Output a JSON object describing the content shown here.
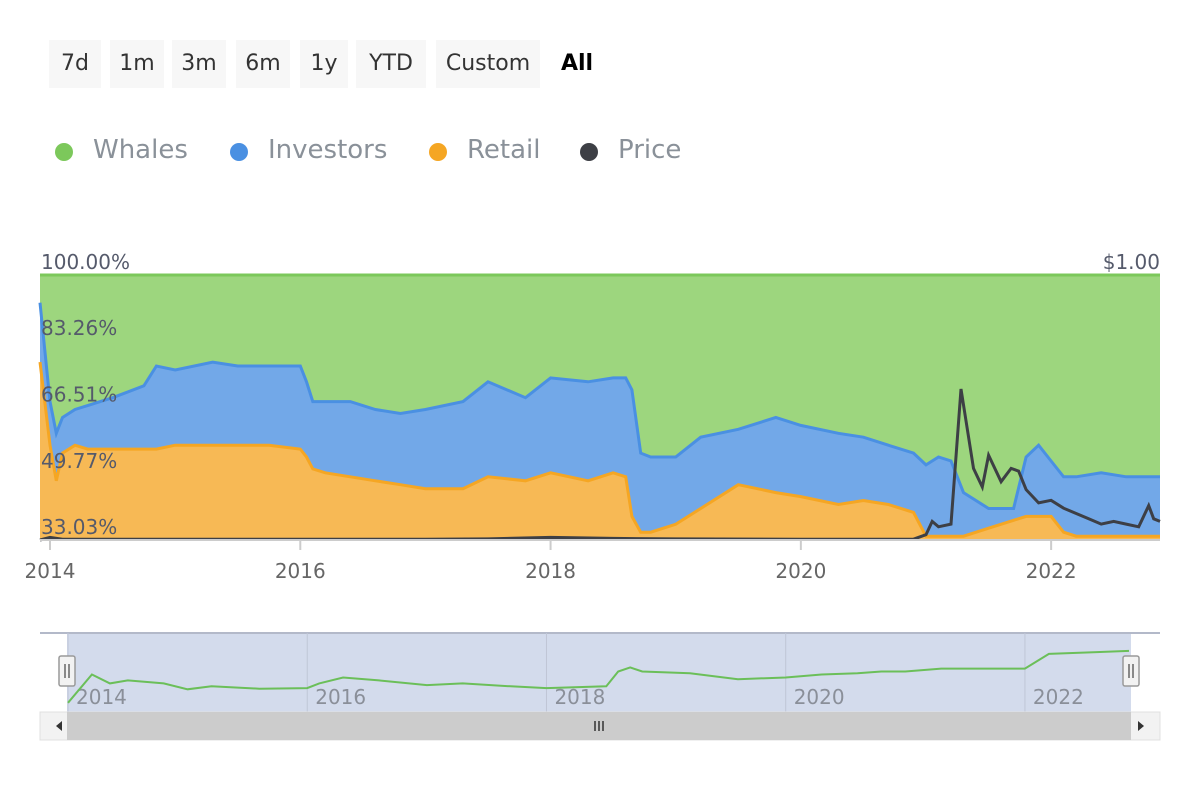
{
  "range_selector": {
    "buttons": [
      {
        "label": "7d",
        "key": "7d"
      },
      {
        "label": "1m",
        "key": "1m"
      },
      {
        "label": "3m",
        "key": "3m"
      },
      {
        "label": "6m",
        "key": "6m"
      },
      {
        "label": "1y",
        "key": "1y"
      },
      {
        "label": "YTD",
        "key": "ytd"
      },
      {
        "label": "Custom",
        "key": "custom"
      },
      {
        "label": "All",
        "key": "all"
      }
    ],
    "active": "All"
  },
  "legend": [
    {
      "label": "Whales",
      "color": "#7cc85b"
    },
    {
      "label": "Investors",
      "color": "#4a90e2"
    },
    {
      "label": "Retail",
      "color": "#f5a623"
    },
    {
      "label": "Price",
      "color": "#3d3f45"
    }
  ],
  "chart_data": {
    "type": "area",
    "stacking": "percent",
    "x_ticks": [
      "2014",
      "2016",
      "2018",
      "2020",
      "2022"
    ],
    "xlim": [
      2013.92,
      2022.87
    ],
    "y_left_ticks": [
      "33.03%",
      "49.77%",
      "66.51%",
      "83.26%",
      "100.00%"
    ],
    "ylim_left": [
      33.03,
      100
    ],
    "y_right_ticks": [
      "$1.00"
    ],
    "ylim_right": [
      0,
      1
    ],
    "x": [
      2013.92,
      2014.0,
      2014.05,
      2014.1,
      2014.2,
      2014.3,
      2014.5,
      2014.75,
      2014.85,
      2015.0,
      2015.3,
      2015.5,
      2015.75,
      2016.0,
      2016.05,
      2016.1,
      2016.2,
      2016.4,
      2016.6,
      2016.8,
      2017.0,
      2017.3,
      2017.5,
      2017.8,
      2018.0,
      2018.3,
      2018.5,
      2018.6,
      2018.65,
      2018.72,
      2018.8,
      2019.0,
      2019.2,
      2019.5,
      2019.8,
      2020.0,
      2020.3,
      2020.5,
      2020.7,
      2020.9,
      2021.0,
      2021.1,
      2021.2,
      2021.3,
      2021.5,
      2021.7,
      2021.8,
      2021.9,
      2022.0,
      2022.1,
      2022.2,
      2022.4,
      2022.6,
      2022.87
    ],
    "series": [
      {
        "name": "Retail",
        "color": "#f5a623",
        "values": [
          78,
          57,
          48,
          55,
          57,
          56,
          56,
          56,
          56,
          57,
          57,
          57,
          57,
          56,
          54,
          51,
          50,
          49,
          48,
          47,
          46,
          46,
          49,
          48,
          50,
          48,
          50,
          49,
          39,
          35,
          35,
          37,
          41,
          47,
          45,
          44,
          42,
          43,
          42,
          40,
          34,
          34,
          34,
          34,
          36,
          38,
          39,
          39,
          39,
          35,
          34,
          34,
          34,
          34
        ]
      },
      {
        "name": "Investors",
        "color": "#4a90e2",
        "values": [
          93,
          68,
          60,
          64,
          66,
          67,
          69,
          72,
          77,
          76,
          78,
          77,
          77,
          77,
          73,
          68,
          68,
          68,
          66,
          65,
          66,
          68,
          73,
          69,
          74,
          73,
          74,
          74,
          71,
          55,
          54,
          54,
          59,
          61,
          64,
          62,
          60,
          59,
          57,
          55,
          52,
          54,
          53,
          45,
          41,
          41,
          54,
          57,
          53,
          49,
          49,
          50,
          49,
          49
        ]
      },
      {
        "name": "Whales",
        "color": "#7cc85b",
        "values": [
          100,
          100,
          100,
          100,
          100,
          100,
          100,
          100,
          100,
          100,
          100,
          100,
          100,
          100,
          100,
          100,
          100,
          100,
          100,
          100,
          100,
          100,
          100,
          100,
          100,
          100,
          100,
          100,
          100,
          100,
          100,
          100,
          100,
          100,
          100,
          100,
          100,
          100,
          100,
          100,
          100,
          100,
          100,
          100,
          100,
          100,
          100,
          100,
          100,
          100,
          100,
          100,
          100,
          100
        ]
      },
      {
        "name": "Price",
        "color": "#3d3f45",
        "axis": "right",
        "x": [
          2013.92,
          2014.0,
          2014.1,
          2017.0,
          2017.5,
          2018.0,
          2018.5,
          2019.0,
          2020.0,
          2020.9,
          2021.0,
          2021.05,
          2021.1,
          2021.2,
          2021.28,
          2021.32,
          2021.38,
          2021.45,
          2021.5,
          2021.6,
          2021.68,
          2021.74,
          2021.8,
          2021.9,
          2022.0,
          2022.1,
          2022.2,
          2022.3,
          2022.4,
          2022.5,
          2022.6,
          2022.7,
          2022.78,
          2022.82,
          2022.87
        ],
        "values": [
          0.0,
          0.01,
          0.003,
          0.003,
          0.004,
          0.01,
          0.006,
          0.004,
          0.003,
          0.003,
          0.02,
          0.07,
          0.05,
          0.06,
          0.57,
          0.45,
          0.27,
          0.2,
          0.32,
          0.22,
          0.27,
          0.26,
          0.19,
          0.14,
          0.15,
          0.12,
          0.1,
          0.08,
          0.06,
          0.07,
          0.06,
          0.05,
          0.13,
          0.08,
          0.07
        ]
      }
    ]
  },
  "navigator": {
    "x_ticks": [
      "2014",
      "2016",
      "2018",
      "2020",
      "2022"
    ],
    "x": [
      2014.0,
      2014.2,
      2014.35,
      2014.5,
      2014.8,
      2015.0,
      2015.2,
      2015.4,
      2015.6,
      2016.0,
      2016.1,
      2016.3,
      2016.6,
      2017.0,
      2017.3,
      2017.7,
      2018.0,
      2018.5,
      2018.6,
      2018.7,
      2018.8,
      2019.2,
      2019.6,
      2020.0,
      2020.3,
      2020.6,
      2020.8,
      2021.0,
      2021.3,
      2021.6,
      2022.0,
      2022.2,
      2022.6,
      2022.87
    ],
    "values": [
      0.02,
      0.5,
      0.35,
      0.4,
      0.35,
      0.25,
      0.3,
      0.28,
      0.26,
      0.27,
      0.35,
      0.45,
      0.4,
      0.32,
      0.35,
      0.3,
      0.27,
      0.3,
      0.55,
      0.62,
      0.55,
      0.52,
      0.42,
      0.45,
      0.5,
      0.52,
      0.55,
      0.55,
      0.6,
      0.6,
      0.6,
      0.85,
      0.88,
      0.9
    ],
    "line_color": "#6bbf59"
  }
}
